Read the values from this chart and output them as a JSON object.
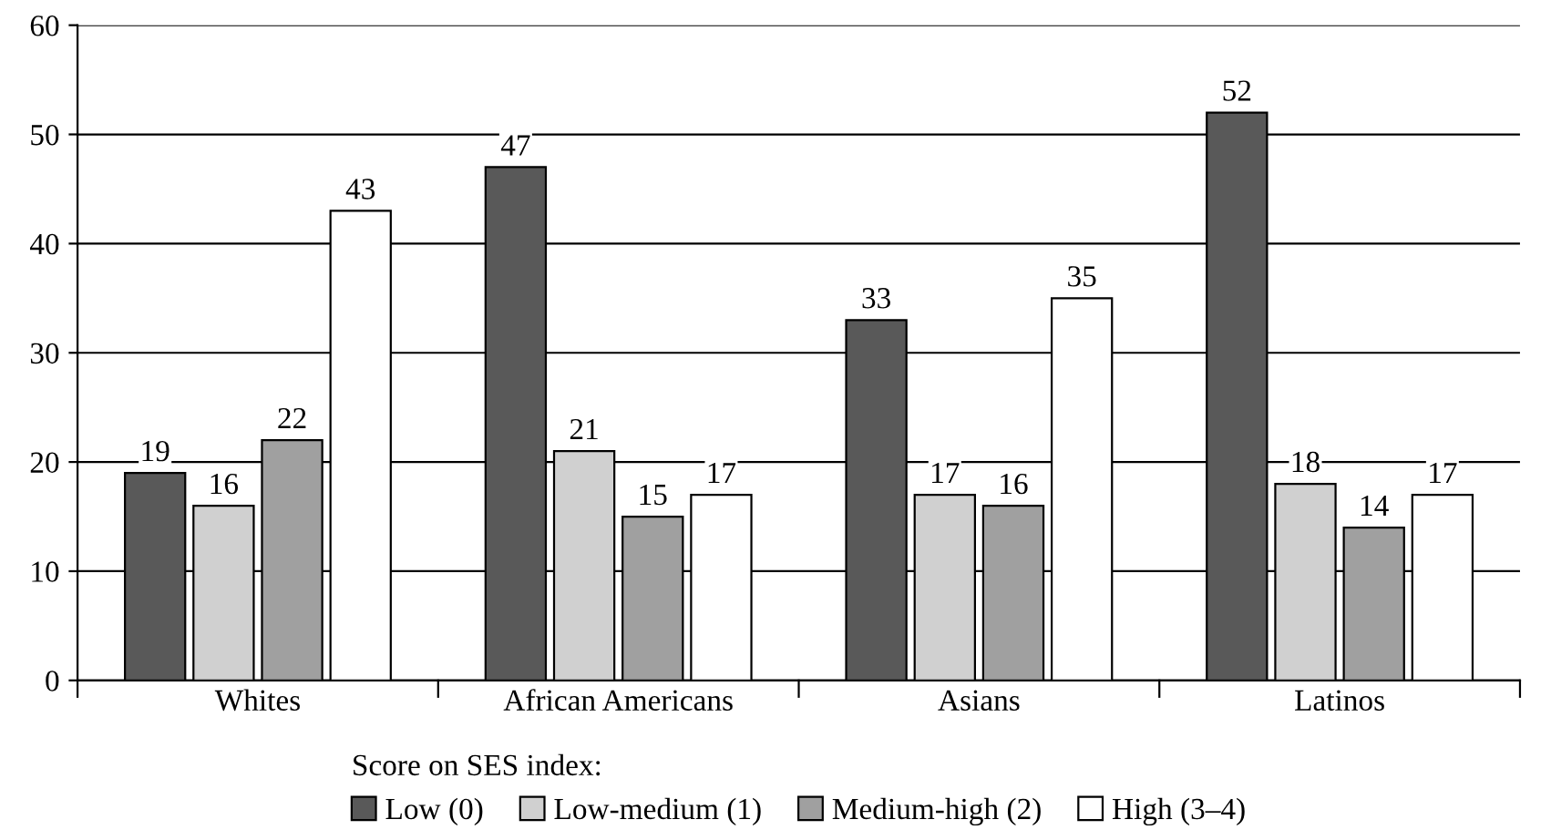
{
  "chart_data": {
    "type": "bar",
    "categories": [
      "Whites",
      "African Americans",
      "Asians",
      "Latinos"
    ],
    "series": [
      {
        "name": "Low (0)",
        "color": "#595959",
        "values": [
          19,
          47,
          33,
          52
        ]
      },
      {
        "name": "Low-medium (1)",
        "color": "#d0d0d0",
        "values": [
          16,
          21,
          17,
          18
        ]
      },
      {
        "name": "Medium-high (2)",
        "color": "#a0a0a0",
        "values": [
          22,
          15,
          16,
          14
        ]
      },
      {
        "name": "High (3–4)",
        "color": "#ffffff",
        "values": [
          43,
          17,
          35,
          17
        ]
      }
    ],
    "legend_title": "Score on SES index:",
    "legend": "bottom",
    "ylim": [
      0,
      60
    ],
    "yticks": [
      0,
      10,
      20,
      30,
      40,
      50,
      60
    ],
    "grid": "y",
    "data_labels": true
  }
}
